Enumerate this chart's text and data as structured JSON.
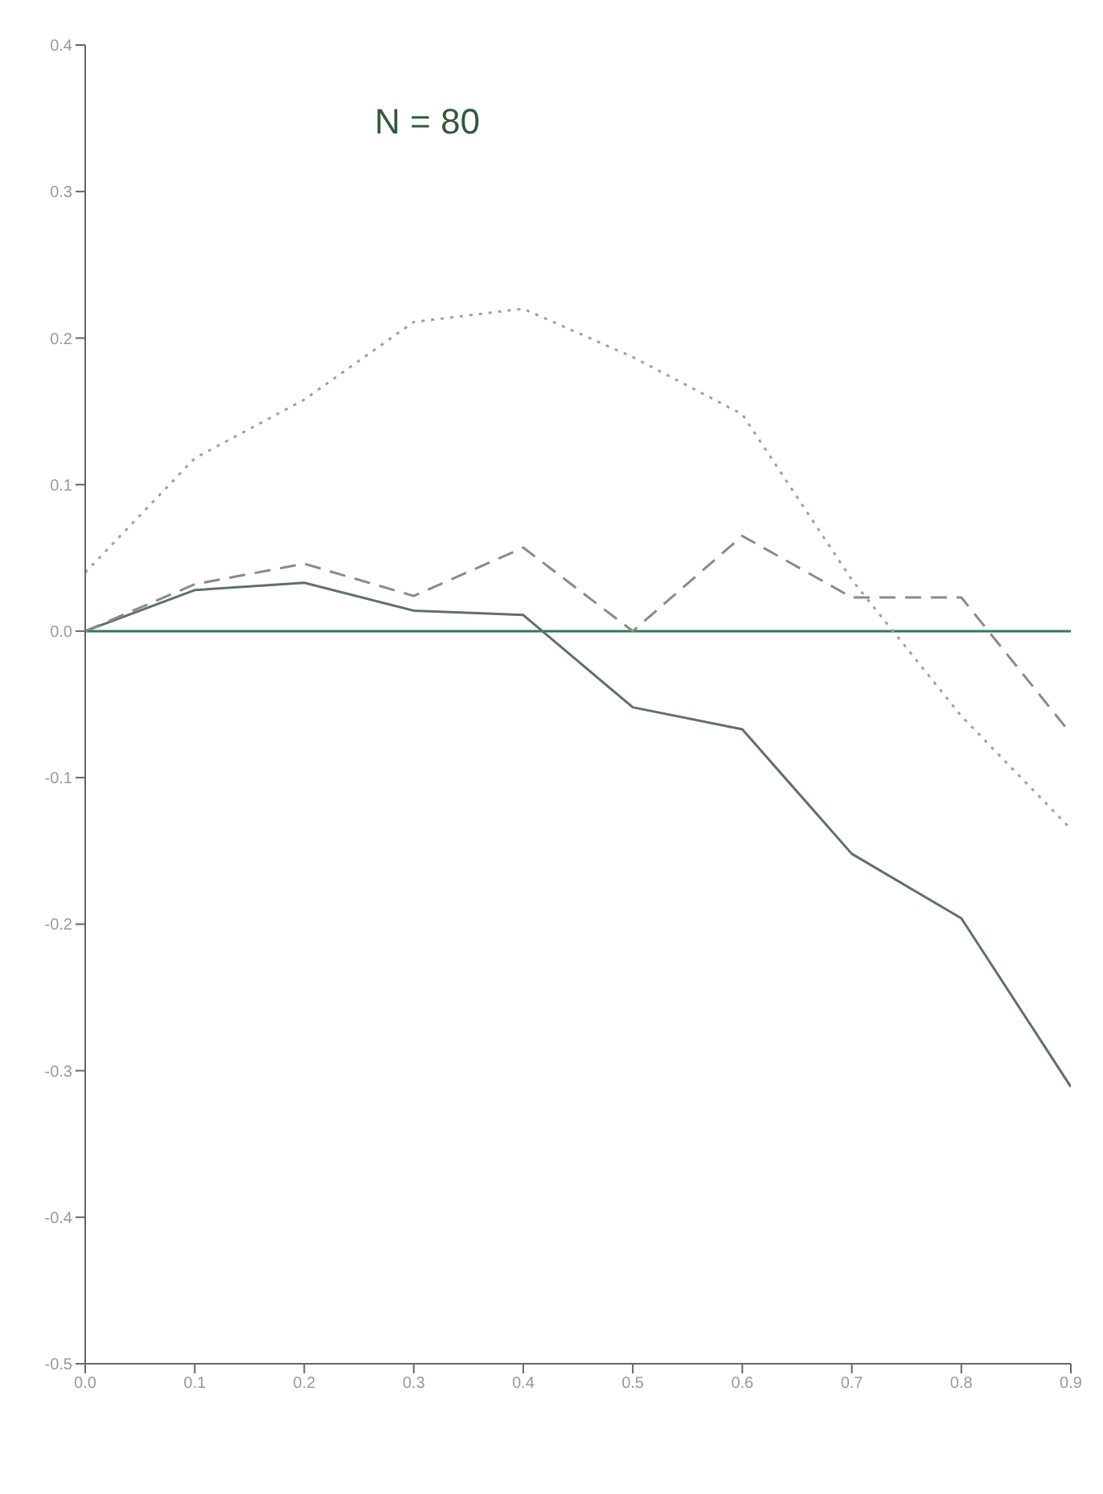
{
  "chart_data": {
    "type": "line",
    "x": [
      0,
      0.1,
      0.2,
      0.3,
      0.4,
      0.5,
      0.6,
      0.7,
      0.8,
      0.9
    ],
    "series": [
      {
        "color": "#5f6f6f",
        "line_style": "solid",
        "values": [
          0,
          0.028,
          0.033,
          0.014,
          0.011,
          -0.052,
          -0.067,
          -0.152,
          -0.196,
          -0.311
        ]
      },
      {
        "color": "#8a8a8a",
        "line_style": "dashed",
        "values": [
          0,
          0.032,
          0.046,
          0.024,
          0.057,
          0,
          0.065,
          0.023,
          0.023,
          -0.07
        ]
      },
      {
        "color": "#a0a0a0",
        "line_style": "dotted",
        "values": [
          0.04,
          0.118,
          0.158,
          0.211,
          0.22,
          0.187,
          0.148,
          0.035,
          -0.058,
          -0.135
        ]
      }
    ],
    "xlim": [
      0,
      0.9
    ],
    "xticks": [
      {
        "value": 0,
        "label": "0.0"
      },
      0.1,
      0.2,
      0.3,
      0.4,
      0.5,
      0.6,
      0.7,
      0.8,
      0.9
    ],
    "ylim": [
      -0.5,
      0.4
    ],
    "yticks": [
      {
        "value": -0.5,
        "label": "-0.5"
      },
      {
        "value": -0.4,
        "label": "-0.4"
      },
      {
        "value": -0.3,
        "label": "-0.3"
      },
      {
        "value": -0.2,
        "label": "-0.2"
      },
      {
        "value": -0.1,
        "label": "-0.1"
      },
      {
        "value": 0,
        "label": "0.0"
      },
      0.1,
      0.2,
      0.3,
      0.4
    ],
    "ref_lines": [
      {
        "axis": "y",
        "value": 0,
        "color": "#2e7d4f"
      }
    ],
    "annotations": [
      "N = 80"
    ],
    "grid": false,
    "legend": false,
    "marker": "none"
  }
}
